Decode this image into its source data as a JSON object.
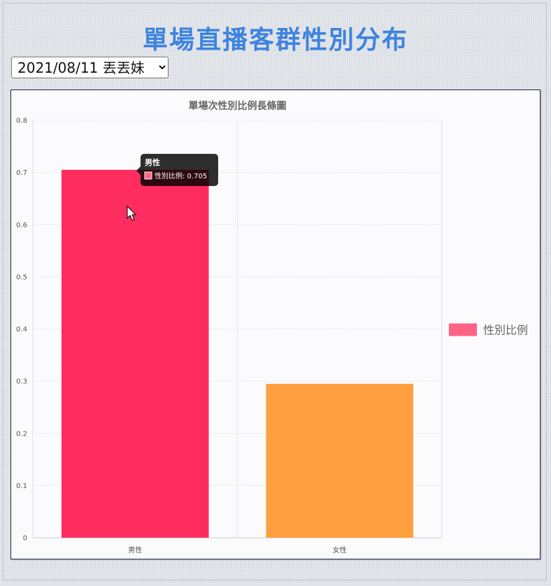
{
  "page": {
    "title": "單場直播客群性別分布"
  },
  "selector": {
    "selected": "2021/08/11 丟丟妹",
    "options": [
      "2021/08/11 丟丟妹"
    ]
  },
  "chart_data": {
    "type": "bar",
    "title": "單場次性別比例長條圖",
    "categories": [
      "男性",
      "女性"
    ],
    "series": [
      {
        "name": "性別比例",
        "values": [
          0.705,
          0.295
        ],
        "colors": [
          "#ff2d5f",
          "#ff9f40"
        ]
      }
    ],
    "ylim": [
      0,
      0.8
    ],
    "yticks": [
      0,
      0.1,
      0.2,
      0.3,
      0.4,
      0.5,
      0.6,
      0.7,
      0.8
    ],
    "grid": true,
    "legend_position": "right",
    "legend_color": "#ff6384",
    "tooltip": {
      "title": "男性",
      "label": "性別比例: 0.705"
    }
  }
}
